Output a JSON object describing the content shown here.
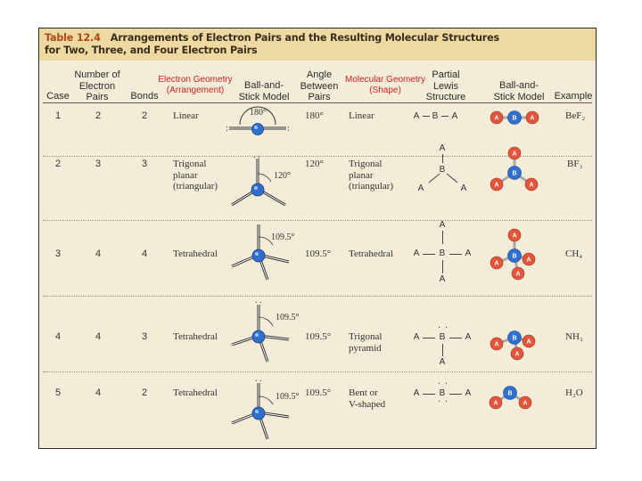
{
  "table": {
    "title_num": "Table 12.4",
    "title_text": "Arrangements of Electron Pairs and the Resulting Molecular Structures for Two, Three, and Four Electron Pairs",
    "headers": {
      "case": "Case",
      "pairs_1": "Number of",
      "pairs_2": "Electron",
      "pairs_3": "Pairs",
      "bonds": "Bonds",
      "eg_1": "Electron Geometry",
      "eg_2": "(Arrangement)",
      "bs_1": "Ball-and-",
      "bs_2": "Stick Model",
      "angle_1": "Angle",
      "angle_2": "Between",
      "angle_3": "Pairs",
      "mg_1": "Molecular Geometry",
      "mg_2": "(Shape)",
      "lewis_1": "Partial",
      "lewis_2": "Lewis",
      "lewis_3": "Structure",
      "bs2_1": "Ball-and-",
      "bs2_2": "Stick Model",
      "example": "Example"
    },
    "rows": [
      {
        "case": "1",
        "pairs": "2",
        "bonds": "2",
        "arr_1": "Linear",
        "arr_2": "",
        "arr_3": "",
        "model_angle": "180°",
        "angle": "180°",
        "struct_1": "Linear",
        "struct_2": "",
        "struct_3": "",
        "example": "BeF₂"
      },
      {
        "case": "2",
        "pairs": "3",
        "bonds": "3",
        "arr_1": "Trigonal",
        "arr_2": "planar",
        "arr_3": "(triangular)",
        "model_angle": "120°",
        "angle": "120°",
        "struct_1": "Trigonal",
        "struct_2": "planar",
        "struct_3": "(triangular)",
        "example": "BF₃"
      },
      {
        "case": "3",
        "pairs": "4",
        "bonds": "4",
        "arr_1": "Tetrahedral",
        "arr_2": "",
        "arr_3": "",
        "model_angle": "109.5°",
        "angle": "109.5°",
        "struct_1": "Tetrahedral",
        "struct_2": "",
        "struct_3": "",
        "example": "CH₄"
      },
      {
        "case": "4",
        "pairs": "4",
        "bonds": "3",
        "arr_1": "Tetrahedral",
        "arr_2": "",
        "arr_3": "",
        "model_angle": "109.5°",
        "angle": "109.5°",
        "struct_1": "Trigonal",
        "struct_2": "pyramid",
        "struct_3": "",
        "example": "NH₃"
      },
      {
        "case": "5",
        "pairs": "4",
        "bonds": "2",
        "arr_1": "Tetrahedral",
        "arr_2": "",
        "arr_3": "",
        "model_angle": "109.5°",
        "angle": "109.5°",
        "struct_1": "Bent or",
        "struct_2": "V-shaped",
        "struct_3": "",
        "example": "H₂O"
      }
    ],
    "lewis": {
      "a": "A",
      "b": "B",
      "lone_pair": ": :"
    },
    "atoms": {
      "central": "B",
      "outer": "A"
    },
    "colors": {
      "title_bar": "#efd9a3",
      "paper": "#f2ecd8",
      "title_num": "#b24a17",
      "overlay_text": "#d32020",
      "central_atom": "#2f6fd0",
      "outer_atom": "#e4563c"
    }
  }
}
